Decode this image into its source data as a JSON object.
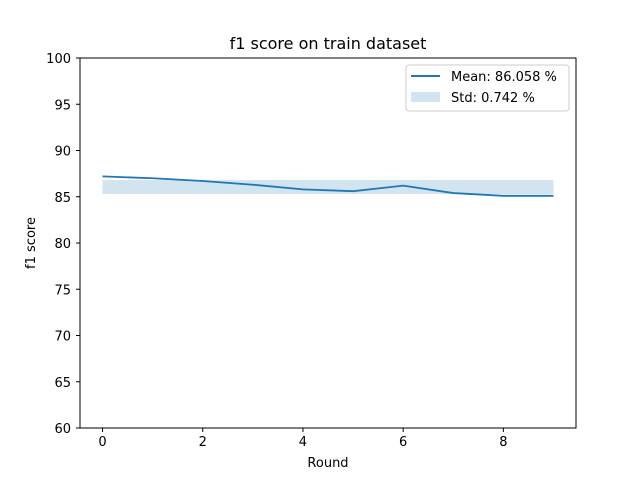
{
  "chart_data": {
    "type": "line",
    "title": "f1 score on train dataset",
    "xlabel": "Round",
    "ylabel": "f1 score",
    "xlim": [
      -0.45,
      9.45
    ],
    "ylim": [
      60,
      100
    ],
    "xticks": [
      0,
      2,
      4,
      6,
      8
    ],
    "yticks": [
      60,
      65,
      70,
      75,
      80,
      85,
      90,
      95,
      100
    ],
    "x": [
      0,
      1,
      2,
      3,
      4,
      5,
      6,
      7,
      8,
      9
    ],
    "series": [
      {
        "name": "Mean: 86.058 %",
        "values": [
          87.2,
          87.0,
          86.7,
          86.3,
          85.8,
          85.6,
          86.2,
          85.4,
          85.1,
          85.1
        ],
        "color": "#1f77b4"
      }
    ],
    "band": {
      "name": "Std: 0.742 %",
      "lower": 85.3,
      "upper": 86.8,
      "color": "#1f77b4",
      "alpha": 0.2
    },
    "legend": "top-right",
    "grid": false
  }
}
